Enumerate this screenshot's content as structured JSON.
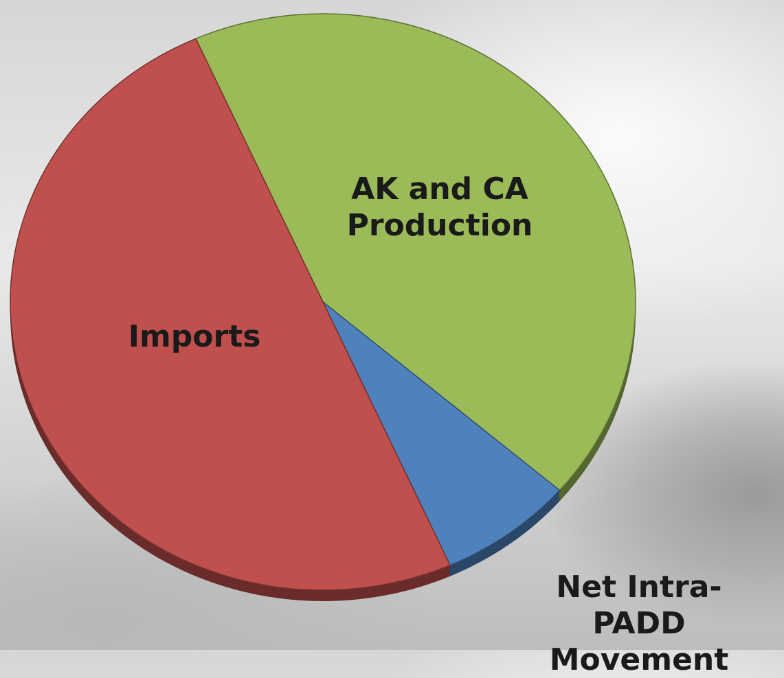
{
  "chart_data": {
    "type": "pie",
    "categories": [
      "AK and CA Production",
      "Net Intra-PADD Movement",
      "Imports"
    ],
    "values": [
      43,
      7,
      50
    ],
    "colors": [
      "#9bbb59",
      "#4f81bd",
      "#c0504d"
    ]
  }
}
